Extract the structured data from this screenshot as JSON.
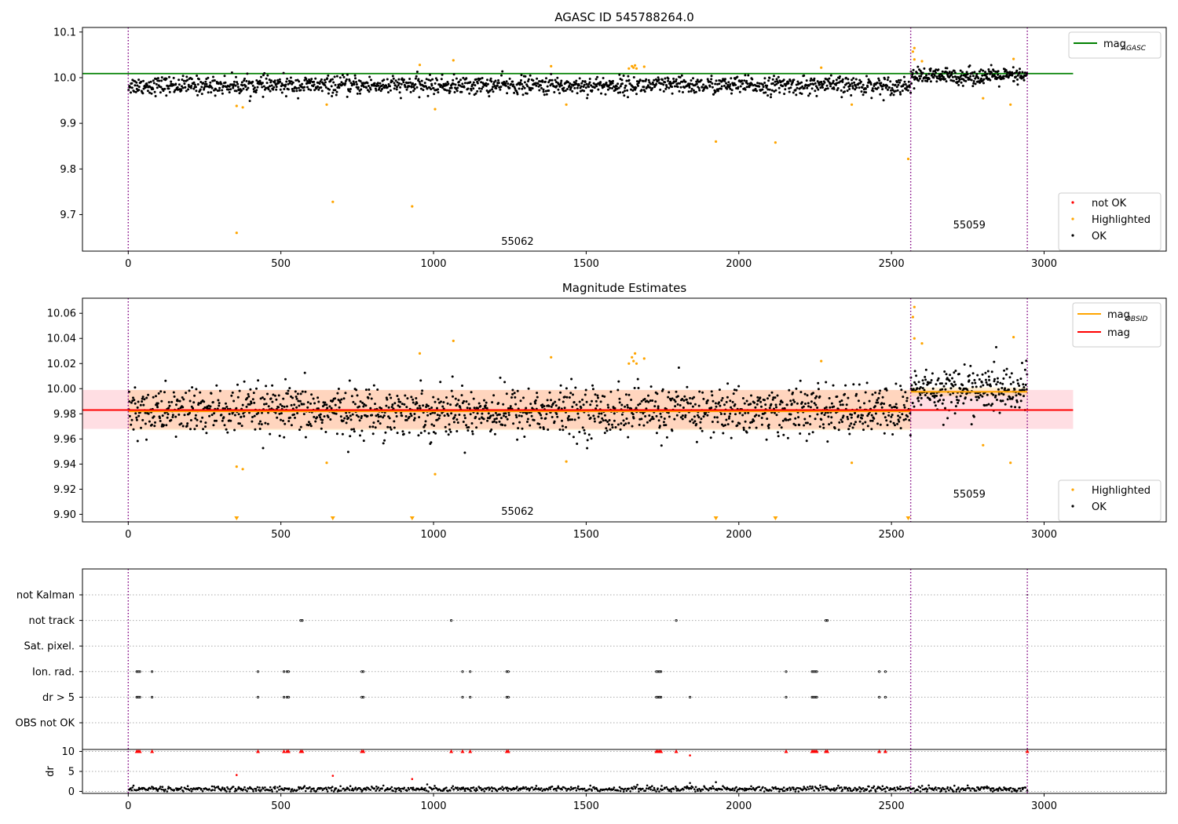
{
  "chart_data": [
    {
      "type": "scatter",
      "title": "AGASC ID 545788264.0",
      "xlim": [
        -150,
        3400
      ],
      "ylim": [
        9.62,
        10.11
      ],
      "x_ticks": [
        0,
        500,
        1000,
        1500,
        2000,
        2500,
        3000
      ],
      "y_ticks": [
        {
          "value": 9.7,
          "label": "9.7"
        },
        {
          "value": 9.8,
          "label": "9.8"
        },
        {
          "value": 9.9,
          "label": "9.9"
        },
        {
          "value": 10.0,
          "label": "10.0"
        },
        {
          "value": 10.1,
          "label": "10.1"
        }
      ],
      "obsid_boundaries": [
        0,
        2563,
        2945
      ],
      "obsid_labels": [
        {
          "text": "55062",
          "x": 1275,
          "y": 9.634
        },
        {
          "text": "55059",
          "x": 2755,
          "y": 9.67
        }
      ],
      "lines": [
        {
          "name": "mag",
          "sub": "AGASC",
          "color": "#008000",
          "x": [
            -150,
            3095
          ],
          "y": [
            10.009,
            10.009
          ]
        }
      ],
      "scatter_ok": {
        "name": "OK",
        "color": "#000000",
        "segments": [
          {
            "x0": 0,
            "x1": 2563,
            "center": 9.983,
            "spread": 0.013,
            "count": 1500
          },
          {
            "x0": 2563,
            "x1": 2945,
            "center": 10.003,
            "spread": 0.012,
            "count": 260
          }
        ]
      },
      "highlighted": {
        "name": "Highlighted",
        "color": "#ffa500",
        "points": [
          [
            355,
            9.66
          ],
          [
            670,
            9.728
          ],
          [
            930,
            9.718
          ],
          [
            1925,
            9.86
          ],
          [
            2120,
            9.858
          ],
          [
            2555,
            9.822
          ],
          [
            355,
            9.938
          ],
          [
            375,
            9.935
          ],
          [
            650,
            9.941
          ],
          [
            1005,
            9.931
          ],
          [
            1435,
            9.941
          ],
          [
            2370,
            9.941
          ],
          [
            2800,
            9.955
          ],
          [
            2890,
            9.941
          ],
          [
            955,
            10.028
          ],
          [
            1065,
            10.038
          ],
          [
            1385,
            10.025
          ],
          [
            1640,
            10.02
          ],
          [
            1650,
            10.025
          ],
          [
            1655,
            10.022
          ],
          [
            1660,
            10.027
          ],
          [
            1665,
            10.02
          ],
          [
            1690,
            10.024
          ],
          [
            2270,
            10.022
          ],
          [
            2575,
            10.065
          ],
          [
            2570,
            10.057
          ],
          [
            2575,
            10.04
          ],
          [
            2600,
            10.036
          ],
          [
            2900,
            10.041
          ]
        ]
      },
      "legend_lines": [
        {
          "label": "mag",
          "sub": "AGASC",
          "color": "#008000"
        }
      ],
      "legend_points": [
        {
          "label": "not OK",
          "color": "#ff0000"
        },
        {
          "label": "Highlighted",
          "color": "#ffa500"
        },
        {
          "label": "OK",
          "color": "#000000"
        }
      ]
    },
    {
      "type": "scatter",
      "title": "Magnitude Estimates",
      "xlim": [
        -150,
        3400
      ],
      "ylim": [
        9.894,
        10.072
      ],
      "x_ticks": [
        0,
        500,
        1000,
        1500,
        2000,
        2500,
        3000
      ],
      "y_ticks": [
        {
          "value": 9.9,
          "label": "9.90"
        },
        {
          "value": 9.92,
          "label": "9.92"
        },
        {
          "value": 9.94,
          "label": "9.94"
        },
        {
          "value": 9.96,
          "label": "9.96"
        },
        {
          "value": 9.98,
          "label": "9.98"
        },
        {
          "value": 10.0,
          "label": "10.00"
        },
        {
          "value": 10.02,
          "label": "10.02"
        },
        {
          "value": 10.04,
          "label": "10.04"
        },
        {
          "value": 10.06,
          "label": "10.06"
        }
      ],
      "obsid_boundaries": [
        0,
        2563,
        2945
      ],
      "obsid_labels": [
        {
          "text": "55062",
          "x": 1275,
          "y": 9.8995
        },
        {
          "text": "55059",
          "x": 2755,
          "y": 9.9135
        }
      ],
      "bands": [
        {
          "color": "#ffb6c1",
          "opacity": 0.45,
          "x": [
            -150,
            3095
          ],
          "y": [
            9.968,
            9.999
          ]
        },
        {
          "color": "#ffa500",
          "opacity": 0.16,
          "x": [
            0,
            2563
          ],
          "y": [
            9.967,
            9.999
          ]
        },
        {
          "color": "#ffa500",
          "opacity": 0.16,
          "x": [
            2563,
            2945
          ],
          "y": [
            9.994,
            10.001
          ]
        }
      ],
      "lines": [
        {
          "name": "mag",
          "sub": "OBSID",
          "color": "#ffa500",
          "x": [
            0,
            2563
          ],
          "y": [
            9.982,
            9.982
          ]
        },
        {
          "name": "mag",
          "sub": "OBSID",
          "color": "#ffa500",
          "x": [
            2563,
            2945
          ],
          "y": [
            9.9975,
            9.9975
          ]
        },
        {
          "name": "mag",
          "sub": "",
          "color": "#ff0000",
          "x": [
            -150,
            3095
          ],
          "y": [
            9.983,
            9.983
          ]
        }
      ],
      "scatter_ok": {
        "name": "OK",
        "color": "#000000",
        "segments": [
          {
            "x0": 0,
            "x1": 2563,
            "center": 9.982,
            "spread": 0.013,
            "count": 1500
          },
          {
            "x0": 2563,
            "x1": 2945,
            "center": 9.999,
            "spread": 0.012,
            "count": 260
          }
        ]
      },
      "highlighted": {
        "name": "Highlighted",
        "color": "#ffa500",
        "points": [
          [
            355,
            9.938
          ],
          [
            375,
            9.936
          ],
          [
            650,
            9.941
          ],
          [
            1005,
            9.932
          ],
          [
            1435,
            9.942
          ],
          [
            2370,
            9.941
          ],
          [
            2800,
            9.955
          ],
          [
            2890,
            9.941
          ],
          [
            955,
            10.028
          ],
          [
            1065,
            10.038
          ],
          [
            1385,
            10.025
          ],
          [
            1640,
            10.02
          ],
          [
            1650,
            10.025
          ],
          [
            1655,
            10.022
          ],
          [
            1660,
            10.028
          ],
          [
            1665,
            10.02
          ],
          [
            1690,
            10.024
          ],
          [
            2270,
            10.022
          ],
          [
            2575,
            10.065
          ],
          [
            2570,
            10.057
          ],
          [
            2575,
            10.04
          ],
          [
            2600,
            10.036
          ],
          [
            2900,
            10.041
          ]
        ]
      },
      "below_range_markers": [
        355,
        670,
        930,
        1925,
        2120,
        2555
      ],
      "legend_lines": [
        {
          "label": "mag",
          "sub": "OBSID",
          "color": "#ffa500"
        },
        {
          "label": "mag",
          "sub": "",
          "color": "#ff0000"
        }
      ],
      "legend_points": [
        {
          "label": "Highlighted",
          "color": "#ffa500"
        },
        {
          "label": "OK",
          "color": "#000000"
        }
      ]
    },
    {
      "type": "scatter",
      "title": "",
      "xlim": [
        -150,
        3400
      ],
      "flag_categories": [
        "not Kalman",
        "not track",
        "Sat. pixel.",
        "Ion. rad.",
        "dr > 5",
        "OBS not OK"
      ],
      "flag_points": {
        "not track": [
          565,
          570,
          1058,
          1795,
          2285,
          2290
        ],
        "Ion. rad.": [
          28,
          33,
          38,
          78,
          425,
          510,
          520,
          525,
          765,
          770,
          1095,
          1120,
          1240,
          1245,
          1730,
          1735,
          1740,
          1745,
          2155,
          2240,
          2245,
          2250,
          2255,
          2460,
          2480
        ],
        "dr > 5": [
          28,
          33,
          38,
          78,
          425,
          510,
          520,
          525,
          765,
          770,
          1095,
          1120,
          1240,
          1245,
          1730,
          1735,
          1740,
          1745,
          1840,
          2155,
          2240,
          2245,
          2250,
          2255,
          2460,
          2480
        ]
      },
      "not_kalman_points": [
        2945
      ],
      "obsid_boundaries": [
        0,
        2563,
        2945
      ],
      "x_ticks": [
        0,
        500,
        1000,
        1500,
        2000,
        2500,
        3000
      ],
      "dr": {
        "ylabel": "dr",
        "ylim": [
          -0.5,
          10.5
        ],
        "y_ticks": [
          0,
          5,
          10
        ],
        "clip": 10,
        "base_level": 0.6,
        "base_count": 900,
        "red_points": [
          [
            28,
            10
          ],
          [
            33,
            10
          ],
          [
            38,
            10
          ],
          [
            78,
            10
          ],
          [
            355,
            4.1
          ],
          [
            425,
            10
          ],
          [
            510,
            10
          ],
          [
            520,
            10
          ],
          [
            525,
            10
          ],
          [
            565,
            10
          ],
          [
            570,
            10
          ],
          [
            670,
            3.9
          ],
          [
            765,
            10
          ],
          [
            770,
            10
          ],
          [
            930,
            3.1
          ],
          [
            1058,
            10
          ],
          [
            1095,
            10
          ],
          [
            1120,
            10
          ],
          [
            1240,
            10
          ],
          [
            1245,
            10
          ],
          [
            1730,
            10
          ],
          [
            1735,
            10
          ],
          [
            1740,
            10
          ],
          [
            1745,
            10
          ],
          [
            1795,
            10
          ],
          [
            1840,
            9
          ],
          [
            2155,
            10
          ],
          [
            2240,
            10
          ],
          [
            2245,
            10
          ],
          [
            2250,
            10
          ],
          [
            2255,
            10
          ],
          [
            2285,
            10
          ],
          [
            2290,
            10
          ],
          [
            2460,
            10
          ],
          [
            2480,
            10
          ],
          [
            2945,
            10
          ]
        ],
        "black_points": [
          [
            1840,
            2.1
          ],
          [
            1925,
            2.3
          ]
        ]
      }
    }
  ]
}
